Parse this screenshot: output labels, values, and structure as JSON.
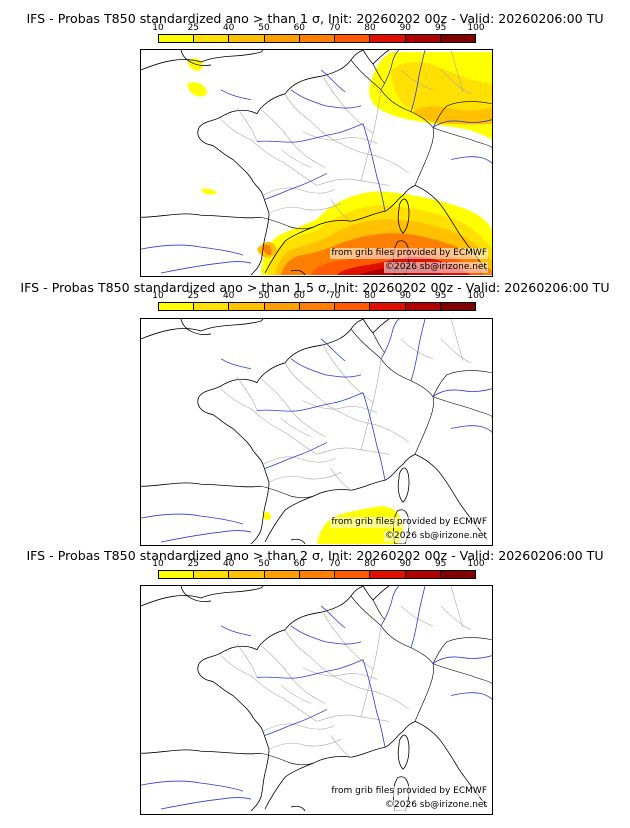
{
  "colorbar": {
    "labels": [
      "10",
      "25",
      "40",
      "50",
      "60",
      "70",
      "80",
      "90",
      "95",
      "100"
    ],
    "colors": [
      "#ffff00",
      "#ffe000",
      "#ffc000",
      "#ffa000",
      "#ff8000",
      "#ff5a00",
      "#e01000",
      "#b00000",
      "#800000",
      "#4a0000"
    ]
  },
  "credits": {
    "source": "from grib files provided by ECMWF",
    "copyright": "©2026 sb@irizone.net"
  },
  "panels": [
    {
      "title": "IFS - Probas T850  standardized ano > than 1 σ, Init: 20260202 00z - Valid: 20260206:00 TU",
      "threshold_sigma": 1
    },
    {
      "title": "IFS - Probas T850  standardized ano > than 1.5 σ, Init: 20260202 00z - Valid: 20260206:00 TU",
      "threshold_sigma": 1.5
    },
    {
      "title": "IFS - Probas T850  standardized ano > than 2 σ, Init: 20260202 00z - Valid: 20260206:00 TU",
      "threshold_sigma": 2
    }
  ]
}
